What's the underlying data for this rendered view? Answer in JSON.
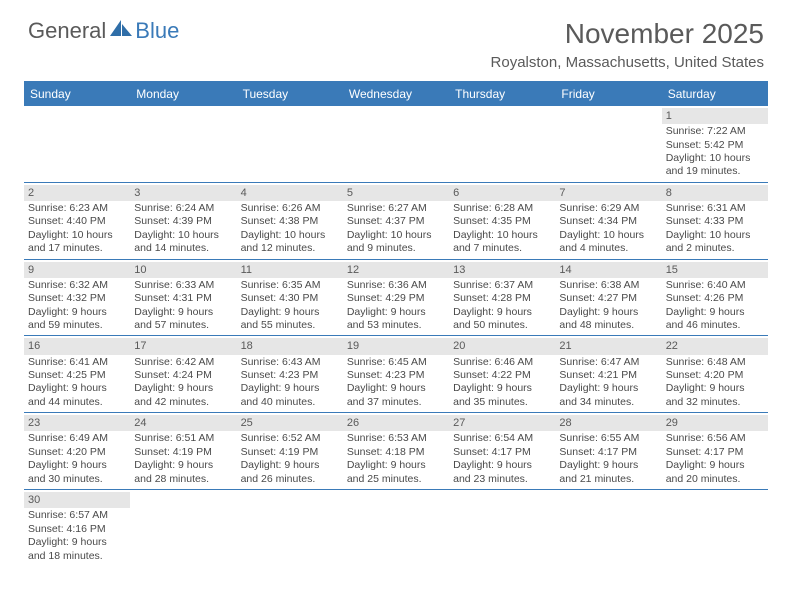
{
  "logo": {
    "general": "General",
    "blue": "Blue"
  },
  "header": {
    "title": "November 2025",
    "location": "Royalston, Massachusetts, United States"
  },
  "colors": {
    "accent": "#3a7ab8",
    "headerBg": "#3a7ab8",
    "headerText": "#ffffff",
    "daynumBg": "#e6e6e6",
    "text": "#4a4a4a",
    "bg": "#ffffff"
  },
  "weekdays": [
    "Sunday",
    "Monday",
    "Tuesday",
    "Wednesday",
    "Thursday",
    "Friday",
    "Saturday"
  ],
  "weeks": [
    [
      {
        "n": "",
        "sr": "",
        "ss": "",
        "dl": ""
      },
      {
        "n": "",
        "sr": "",
        "ss": "",
        "dl": ""
      },
      {
        "n": "",
        "sr": "",
        "ss": "",
        "dl": ""
      },
      {
        "n": "",
        "sr": "",
        "ss": "",
        "dl": ""
      },
      {
        "n": "",
        "sr": "",
        "ss": "",
        "dl": ""
      },
      {
        "n": "",
        "sr": "",
        "ss": "",
        "dl": ""
      },
      {
        "n": "1",
        "sr": "Sunrise: 7:22 AM",
        "ss": "Sunset: 5:42 PM",
        "dl": "Daylight: 10 hours and 19 minutes."
      }
    ],
    [
      {
        "n": "2",
        "sr": "Sunrise: 6:23 AM",
        "ss": "Sunset: 4:40 PM",
        "dl": "Daylight: 10 hours and 17 minutes."
      },
      {
        "n": "3",
        "sr": "Sunrise: 6:24 AM",
        "ss": "Sunset: 4:39 PM",
        "dl": "Daylight: 10 hours and 14 minutes."
      },
      {
        "n": "4",
        "sr": "Sunrise: 6:26 AM",
        "ss": "Sunset: 4:38 PM",
        "dl": "Daylight: 10 hours and 12 minutes."
      },
      {
        "n": "5",
        "sr": "Sunrise: 6:27 AM",
        "ss": "Sunset: 4:37 PM",
        "dl": "Daylight: 10 hours and 9 minutes."
      },
      {
        "n": "6",
        "sr": "Sunrise: 6:28 AM",
        "ss": "Sunset: 4:35 PM",
        "dl": "Daylight: 10 hours and 7 minutes."
      },
      {
        "n": "7",
        "sr": "Sunrise: 6:29 AM",
        "ss": "Sunset: 4:34 PM",
        "dl": "Daylight: 10 hours and 4 minutes."
      },
      {
        "n": "8",
        "sr": "Sunrise: 6:31 AM",
        "ss": "Sunset: 4:33 PM",
        "dl": "Daylight: 10 hours and 2 minutes."
      }
    ],
    [
      {
        "n": "9",
        "sr": "Sunrise: 6:32 AM",
        "ss": "Sunset: 4:32 PM",
        "dl": "Daylight: 9 hours and 59 minutes."
      },
      {
        "n": "10",
        "sr": "Sunrise: 6:33 AM",
        "ss": "Sunset: 4:31 PM",
        "dl": "Daylight: 9 hours and 57 minutes."
      },
      {
        "n": "11",
        "sr": "Sunrise: 6:35 AM",
        "ss": "Sunset: 4:30 PM",
        "dl": "Daylight: 9 hours and 55 minutes."
      },
      {
        "n": "12",
        "sr": "Sunrise: 6:36 AM",
        "ss": "Sunset: 4:29 PM",
        "dl": "Daylight: 9 hours and 53 minutes."
      },
      {
        "n": "13",
        "sr": "Sunrise: 6:37 AM",
        "ss": "Sunset: 4:28 PM",
        "dl": "Daylight: 9 hours and 50 minutes."
      },
      {
        "n": "14",
        "sr": "Sunrise: 6:38 AM",
        "ss": "Sunset: 4:27 PM",
        "dl": "Daylight: 9 hours and 48 minutes."
      },
      {
        "n": "15",
        "sr": "Sunrise: 6:40 AM",
        "ss": "Sunset: 4:26 PM",
        "dl": "Daylight: 9 hours and 46 minutes."
      }
    ],
    [
      {
        "n": "16",
        "sr": "Sunrise: 6:41 AM",
        "ss": "Sunset: 4:25 PM",
        "dl": "Daylight: 9 hours and 44 minutes."
      },
      {
        "n": "17",
        "sr": "Sunrise: 6:42 AM",
        "ss": "Sunset: 4:24 PM",
        "dl": "Daylight: 9 hours and 42 minutes."
      },
      {
        "n": "18",
        "sr": "Sunrise: 6:43 AM",
        "ss": "Sunset: 4:23 PM",
        "dl": "Daylight: 9 hours and 40 minutes."
      },
      {
        "n": "19",
        "sr": "Sunrise: 6:45 AM",
        "ss": "Sunset: 4:23 PM",
        "dl": "Daylight: 9 hours and 37 minutes."
      },
      {
        "n": "20",
        "sr": "Sunrise: 6:46 AM",
        "ss": "Sunset: 4:22 PM",
        "dl": "Daylight: 9 hours and 35 minutes."
      },
      {
        "n": "21",
        "sr": "Sunrise: 6:47 AM",
        "ss": "Sunset: 4:21 PM",
        "dl": "Daylight: 9 hours and 34 minutes."
      },
      {
        "n": "22",
        "sr": "Sunrise: 6:48 AM",
        "ss": "Sunset: 4:20 PM",
        "dl": "Daylight: 9 hours and 32 minutes."
      }
    ],
    [
      {
        "n": "23",
        "sr": "Sunrise: 6:49 AM",
        "ss": "Sunset: 4:20 PM",
        "dl": "Daylight: 9 hours and 30 minutes."
      },
      {
        "n": "24",
        "sr": "Sunrise: 6:51 AM",
        "ss": "Sunset: 4:19 PM",
        "dl": "Daylight: 9 hours and 28 minutes."
      },
      {
        "n": "25",
        "sr": "Sunrise: 6:52 AM",
        "ss": "Sunset: 4:19 PM",
        "dl": "Daylight: 9 hours and 26 minutes."
      },
      {
        "n": "26",
        "sr": "Sunrise: 6:53 AM",
        "ss": "Sunset: 4:18 PM",
        "dl": "Daylight: 9 hours and 25 minutes."
      },
      {
        "n": "27",
        "sr": "Sunrise: 6:54 AM",
        "ss": "Sunset: 4:17 PM",
        "dl": "Daylight: 9 hours and 23 minutes."
      },
      {
        "n": "28",
        "sr": "Sunrise: 6:55 AM",
        "ss": "Sunset: 4:17 PM",
        "dl": "Daylight: 9 hours and 21 minutes."
      },
      {
        "n": "29",
        "sr": "Sunrise: 6:56 AM",
        "ss": "Sunset: 4:17 PM",
        "dl": "Daylight: 9 hours and 20 minutes."
      }
    ],
    [
      {
        "n": "30",
        "sr": "Sunrise: 6:57 AM",
        "ss": "Sunset: 4:16 PM",
        "dl": "Daylight: 9 hours and 18 minutes."
      },
      {
        "n": "",
        "sr": "",
        "ss": "",
        "dl": ""
      },
      {
        "n": "",
        "sr": "",
        "ss": "",
        "dl": ""
      },
      {
        "n": "",
        "sr": "",
        "ss": "",
        "dl": ""
      },
      {
        "n": "",
        "sr": "",
        "ss": "",
        "dl": ""
      },
      {
        "n": "",
        "sr": "",
        "ss": "",
        "dl": ""
      },
      {
        "n": "",
        "sr": "",
        "ss": "",
        "dl": ""
      }
    ]
  ]
}
